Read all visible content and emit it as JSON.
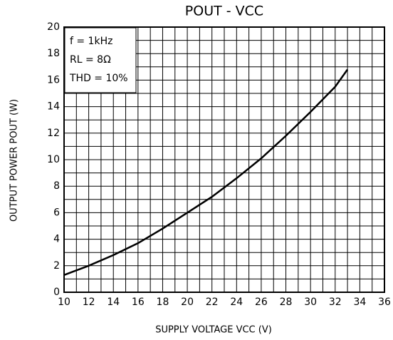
{
  "chart_data": {
    "type": "line",
    "title": "POUT - VCC",
    "x_label": "SUPPLY VOLTAGE VCC (V)",
    "y_label": "OUTPUT POWER POUT (W)",
    "annotations": [
      "f = 1kHz",
      "RL = 8Ω",
      "THD = 10%"
    ],
    "x": [
      10,
      12,
      14,
      16,
      18,
      20,
      22,
      24,
      26,
      28,
      30,
      32,
      33
    ],
    "series": [
      {
        "color": "#000000",
        "values": [
          1.3,
          2.0,
          2.8,
          3.7,
          4.8,
          6.0,
          7.2,
          8.6,
          10.1,
          11.8,
          13.6,
          15.5,
          16.8
        ]
      }
    ],
    "xlim": [
      10,
      36
    ],
    "xticks": [
      10,
      12,
      14,
      16,
      18,
      20,
      22,
      24,
      26,
      28,
      30,
      32,
      34,
      36
    ],
    "xminor": [
      11,
      13,
      15,
      17,
      19,
      21,
      23,
      25,
      27,
      29,
      31,
      33,
      35
    ],
    "ylim": [
      0,
      20
    ],
    "yticks": [
      0,
      2,
      4,
      6,
      8,
      10,
      12,
      14,
      16,
      18,
      20
    ],
    "yminor": [
      1,
      3,
      5,
      7,
      9,
      11,
      13,
      15,
      17,
      19
    ],
    "grid": true
  }
}
